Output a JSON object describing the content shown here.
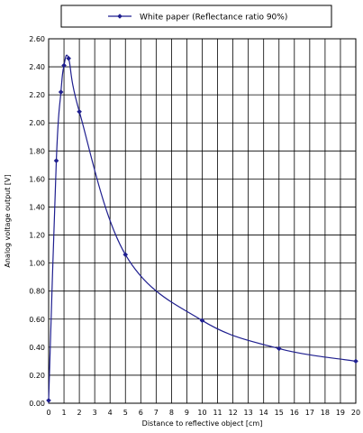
{
  "chart_data": {
    "type": "line",
    "title": "",
    "xlabel": "Distance to reflective object [cm]",
    "ylabel": "Analog voltage output [V]",
    "xlim": [
      0,
      20
    ],
    "ylim": [
      0,
      2.6
    ],
    "x_ticks": [
      "0",
      "1",
      "2",
      "3",
      "4",
      "5",
      "6",
      "7",
      "8",
      "9",
      "10",
      "11",
      "12",
      "13",
      "14",
      "15",
      "16",
      "17",
      "18",
      "19",
      "20"
    ],
    "y_ticks": [
      "0.00",
      "0.20",
      "0.40",
      "0.60",
      "0.80",
      "1.00",
      "1.20",
      "1.40",
      "1.60",
      "1.80",
      "2.00",
      "2.20",
      "2.40",
      "2.60"
    ],
    "grid": true,
    "legend_position": "top",
    "series": [
      {
        "name": "White paper (Reflectance ratio 90%)",
        "color": "#1f1f8f",
        "marker": "diamond",
        "x": [
          0,
          0.5,
          0.8,
          1.0,
          1.3,
          2.0,
          5.0,
          10.0,
          15.0,
          20.0
        ],
        "y": [
          0.02,
          1.73,
          2.22,
          2.41,
          2.46,
          2.08,
          1.06,
          0.59,
          0.39,
          0.3
        ]
      }
    ]
  }
}
